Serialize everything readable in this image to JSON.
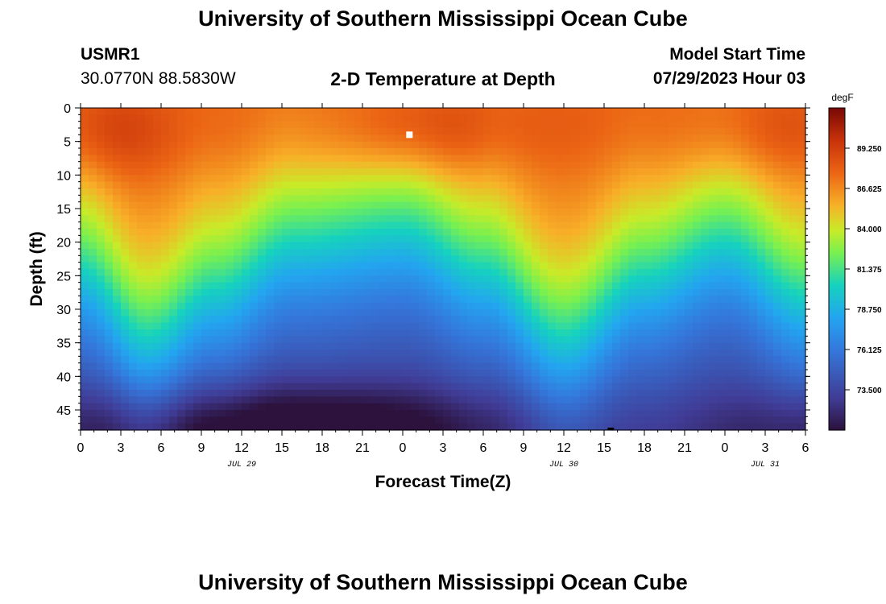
{
  "page": {
    "title": "University of Southern Mississippi Ocean Cube",
    "station_id": "USMR1",
    "coordinates": "30.0770N  88.5830W",
    "model_start_label": "Model Start Time",
    "model_start_value": "07/29/2023 Hour 03",
    "footer_title": "University of Southern Mississippi Ocean Cube"
  },
  "colors": {
    "background": "#ffffff",
    "axis": "#000000",
    "max_marker": "#ffffff",
    "min_marker": "#000000"
  },
  "chart_data": {
    "type": "heatmap",
    "title": "2-D Temperature at Depth",
    "xlabel": "Forecast Time(Z)",
    "ylabel": "Depth (ft)",
    "x_tick_labels": [
      "0",
      "3",
      "6",
      "9",
      "12",
      "15",
      "18",
      "21",
      "0",
      "3",
      "6",
      "9",
      "12",
      "15",
      "18",
      "21",
      "0",
      "3",
      "6"
    ],
    "x_range_hours": [
      0,
      54
    ],
    "date_labels": [
      {
        "text": "JUL 29",
        "hour": 12
      },
      {
        "text": "JUL 30",
        "hour": 36
      },
      {
        "text": "JUL 31",
        "hour": 51
      }
    ],
    "y_tick_labels": [
      "0",
      "5",
      "10",
      "15",
      "20",
      "25",
      "30",
      "35",
      "40",
      "45"
    ],
    "y_range_ft": [
      0,
      48
    ],
    "colorbar": {
      "unit": "degF",
      "min": 70.875,
      "max": 91.875,
      "tick_labels": [
        "89.250",
        "86.625",
        "84.000",
        "81.375",
        "78.750",
        "76.125",
        "73.500"
      ],
      "tick_values": [
        89.25,
        86.625,
        84.0,
        81.375,
        78.75,
        76.125,
        73.5
      ]
    },
    "thermocline_depth_by_hour": [
      {
        "hour": 0,
        "depth": 24
      },
      {
        "hour": 5,
        "depth": 34
      },
      {
        "hour": 10,
        "depth": 27
      },
      {
        "hour": 16,
        "depth": 20
      },
      {
        "hour": 24,
        "depth": 18
      },
      {
        "hour": 30,
        "depth": 24
      },
      {
        "hour": 36,
        "depth": 34
      },
      {
        "hour": 42,
        "depth": 25
      },
      {
        "hour": 48,
        "depth": 20
      },
      {
        "hour": 54,
        "depth": 28
      }
    ],
    "markers": [
      {
        "type": "max",
        "hour": 24.5,
        "depth": 4
      },
      {
        "type": "min",
        "hour": 39.5,
        "depth": 48
      }
    ]
  }
}
